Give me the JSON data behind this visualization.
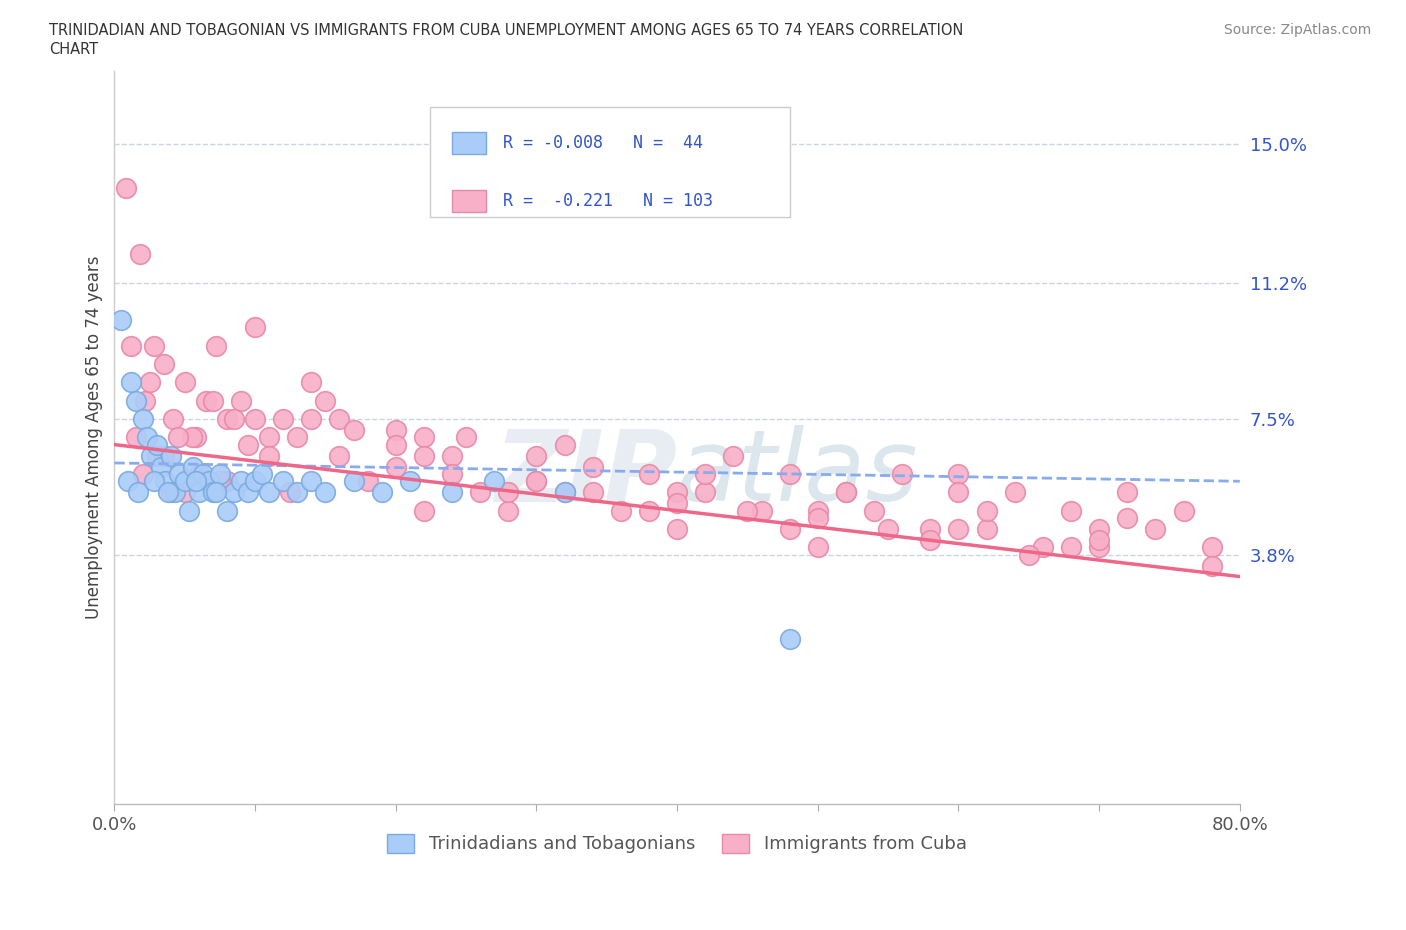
{
  "title_line1": "TRINIDADIAN AND TOBAGONIAN VS IMMIGRANTS FROM CUBA UNEMPLOYMENT AMONG AGES 65 TO 74 YEARS CORRELATION",
  "title_line2": "CHART",
  "source_text": "Source: ZipAtlas.com",
  "ylabel": "Unemployment Among Ages 65 to 74 years",
  "xlim": [
    0,
    80
  ],
  "ylim": [
    -3,
    17
  ],
  "ytick_vals": [
    3.8,
    7.5,
    11.2,
    15.0
  ],
  "ytick_labels": [
    "3.8%",
    "7.5%",
    "11.2%",
    "15.0%"
  ],
  "watermark_text": "ZIPatlas",
  "series1_color": "#aaccf8",
  "series1_edge_color": "#7aaae0",
  "series2_color": "#f8b0c8",
  "series2_edge_color": "#e888a8",
  "trendline1_color": "#88aaee",
  "trendline2_color": "#ee6688",
  "legend_text_color": "#3355cc",
  "grid_color": "#c8d4e8",
  "background_color": "#ffffff",
  "bottom_legend_text_color": "#555555",
  "series1_label": "Trinidadians and Tobagonians",
  "series2_label": "Immigrants from Cuba",
  "trendline1_y_start": 6.3,
  "trendline1_y_end": 5.8,
  "trendline2_y_start": 6.8,
  "trendline2_y_end": 3.2,
  "series1_x": [
    0.5,
    1.2,
    1.5,
    2.0,
    2.3,
    2.6,
    3.0,
    3.3,
    3.6,
    4.0,
    4.3,
    4.6,
    5.0,
    5.3,
    5.6,
    6.0,
    6.3,
    6.7,
    7.0,
    7.5,
    8.0,
    8.5,
    9.0,
    9.5,
    10.0,
    10.5,
    11.0,
    12.0,
    13.0,
    14.0,
    15.0,
    17.0,
    19.0,
    21.0,
    24.0,
    27.0,
    32.0,
    48.0,
    1.0,
    1.7,
    2.8,
    3.8,
    5.8,
    7.2
  ],
  "series1_y": [
    10.2,
    8.5,
    8.0,
    7.5,
    7.0,
    6.5,
    6.8,
    6.2,
    5.8,
    6.5,
    5.5,
    6.0,
    5.8,
    5.0,
    6.2,
    5.5,
    6.0,
    5.8,
    5.5,
    6.0,
    5.0,
    5.5,
    5.8,
    5.5,
    5.8,
    6.0,
    5.5,
    5.8,
    5.5,
    5.8,
    5.5,
    5.8,
    5.5,
    5.8,
    5.5,
    5.8,
    5.5,
    1.5,
    5.8,
    5.5,
    5.8,
    5.5,
    5.8,
    5.5
  ],
  "series2_x": [
    0.8,
    1.2,
    1.8,
    2.2,
    2.8,
    3.5,
    4.2,
    5.0,
    5.8,
    6.5,
    7.2,
    8.0,
    9.0,
    10.0,
    11.0,
    12.5,
    14.0,
    16.0,
    18.0,
    20.0,
    22.0,
    24.0,
    26.0,
    28.0,
    30.0,
    32.0,
    34.0,
    36.0,
    38.0,
    40.0,
    42.0,
    44.0,
    46.0,
    48.0,
    50.0,
    52.0,
    54.0,
    56.0,
    58.0,
    60.0,
    62.0,
    64.0,
    66.0,
    68.0,
    70.0,
    72.0,
    74.0,
    76.0,
    78.0,
    1.5,
    3.0,
    5.5,
    8.5,
    14.0,
    22.0,
    30.0,
    40.0,
    50.0,
    60.0,
    70.0,
    2.5,
    4.5,
    7.0,
    9.5,
    12.0,
    16.0,
    20.0,
    25.0,
    32.0,
    42.0,
    52.0,
    62.0,
    72.0,
    3.5,
    6.0,
    10.0,
    15.0,
    22.0,
    30.0,
    40.0,
    50.0,
    60.0,
    70.0,
    2.0,
    5.0,
    8.0,
    13.0,
    20.0,
    28.0,
    38.0,
    48.0,
    58.0,
    68.0,
    78.0,
    4.0,
    7.5,
    11.0,
    17.0,
    24.0,
    34.0,
    45.0,
    55.0,
    65.0
  ],
  "series2_y": [
    13.8,
    9.5,
    12.0,
    8.0,
    9.5,
    9.0,
    7.5,
    8.5,
    7.0,
    8.0,
    9.5,
    7.5,
    8.0,
    10.0,
    7.0,
    5.5,
    7.5,
    6.5,
    5.8,
    6.2,
    5.0,
    6.5,
    5.5,
    5.0,
    5.8,
    5.5,
    6.2,
    5.0,
    6.0,
    4.5,
    5.5,
    6.5,
    5.0,
    6.0,
    4.0,
    5.5,
    5.0,
    6.0,
    4.5,
    6.0,
    4.5,
    5.5,
    4.0,
    5.0,
    4.0,
    5.5,
    4.5,
    5.0,
    4.0,
    7.0,
    6.5,
    7.0,
    7.5,
    8.5,
    7.0,
    6.5,
    5.5,
    5.0,
    5.5,
    4.5,
    8.5,
    7.0,
    8.0,
    6.8,
    7.5,
    7.5,
    7.2,
    7.0,
    6.8,
    6.0,
    5.5,
    5.0,
    4.8,
    6.5,
    6.0,
    7.5,
    8.0,
    6.5,
    5.8,
    5.2,
    4.8,
    4.5,
    4.2,
    6.0,
    5.5,
    5.8,
    7.0,
    6.8,
    5.5,
    5.0,
    4.5,
    4.2,
    4.0,
    3.5,
    5.5,
    5.8,
    6.5,
    7.2,
    6.0,
    5.5,
    5.0,
    4.5,
    3.8
  ]
}
